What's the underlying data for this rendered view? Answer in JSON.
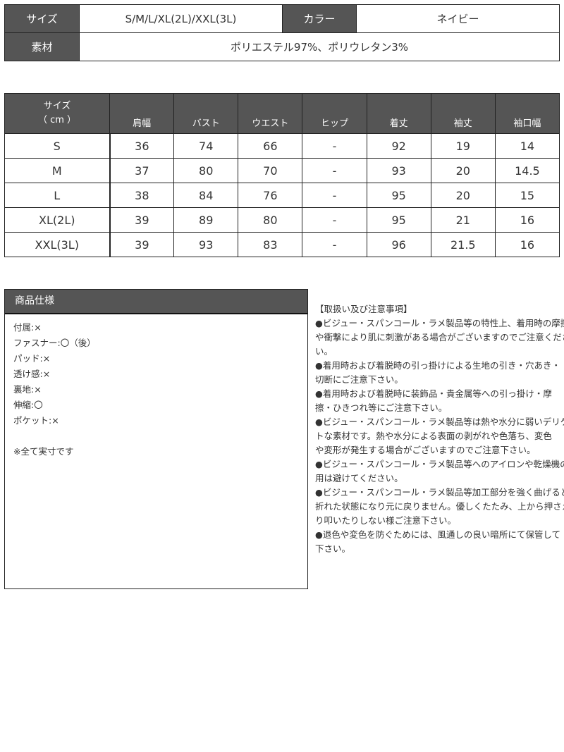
{
  "basic": {
    "size_label": "サイズ",
    "size_value": "S/M/L/XL(2L)/XXL(3L)",
    "color_label": "カラー",
    "color_value": "ネイビー",
    "material_label": "素材",
    "material_value": "ポリエステル97%、ポリウレタン3%"
  },
  "size_table": {
    "header_line1": "サイズ",
    "header_line2": "（ cm ）",
    "columns": [
      "肩幅",
      "バスト",
      "ウエスト",
      "ヒップ",
      "着丈",
      "袖丈",
      "袖口幅"
    ],
    "rows": [
      {
        "size": "S",
        "values": [
          "36",
          "74",
          "66",
          "-",
          "92",
          "19",
          "14"
        ]
      },
      {
        "size": "M",
        "values": [
          "37",
          "80",
          "70",
          "-",
          "93",
          "20",
          "14.5"
        ]
      },
      {
        "size": "L",
        "values": [
          "38",
          "84",
          "76",
          "-",
          "95",
          "20",
          "15"
        ]
      },
      {
        "size": "XL(2L)",
        "values": [
          "39",
          "89",
          "80",
          "-",
          "95",
          "21",
          "16"
        ]
      },
      {
        "size": "XXL(3L)",
        "values": [
          "39",
          "93",
          "83",
          "-",
          "96",
          "21.5",
          "16"
        ]
      }
    ]
  },
  "spec": {
    "title": "商品仕様",
    "items": [
      "付属:×",
      "ファスナー:〇（後）",
      "パッド:×",
      "透け感:×",
      "裏地:×",
      "伸縮:〇",
      "ポケット:×"
    ],
    "note": "※全て実寸です"
  },
  "notes": {
    "title": "【取扱い及び注意事項】",
    "lines": [
      "●ビジュー・スパンコール・ラメ製品等の特性上、着用時の摩擦",
      "や衝撃により肌に刺激がある場合がございますのでご注意くださ",
      "い。",
      "●着用時および着脱時の引っ掛けによる生地の引き・穴あき・",
      "切断にご注意下さい。",
      "●着用時および着脱時に装飾品・貴金属等への引っ掛け・摩",
      "擦・ひきつれ等にご注意下さい。",
      "●ビジュー・スパンコール・ラメ製品等は熱や水分に弱いデリケー",
      "トな素材です。熱や水分による表面の剥がれや色落ち、変色",
      "や変形が発生する場合がございますのでご注意下さい。",
      "●ビジュー・スパンコール・ラメ製品等へのアイロンや乾燥機の使",
      "用は避けてください。",
      "●ビジュー・スパンコール・ラメ製品等加工部分を強く曲げると",
      "折れた状態になり元に戻りません。優しくたたみ、上から押さえた",
      "り叩いたりしない様ご注意下さい。",
      "●退色や変色を防ぐためには、風通しの良い暗所にて保管して",
      "下さい。"
    ]
  },
  "colors": {
    "header_bg": "#555555",
    "header_text": "#ffffff",
    "border": "#222222"
  }
}
